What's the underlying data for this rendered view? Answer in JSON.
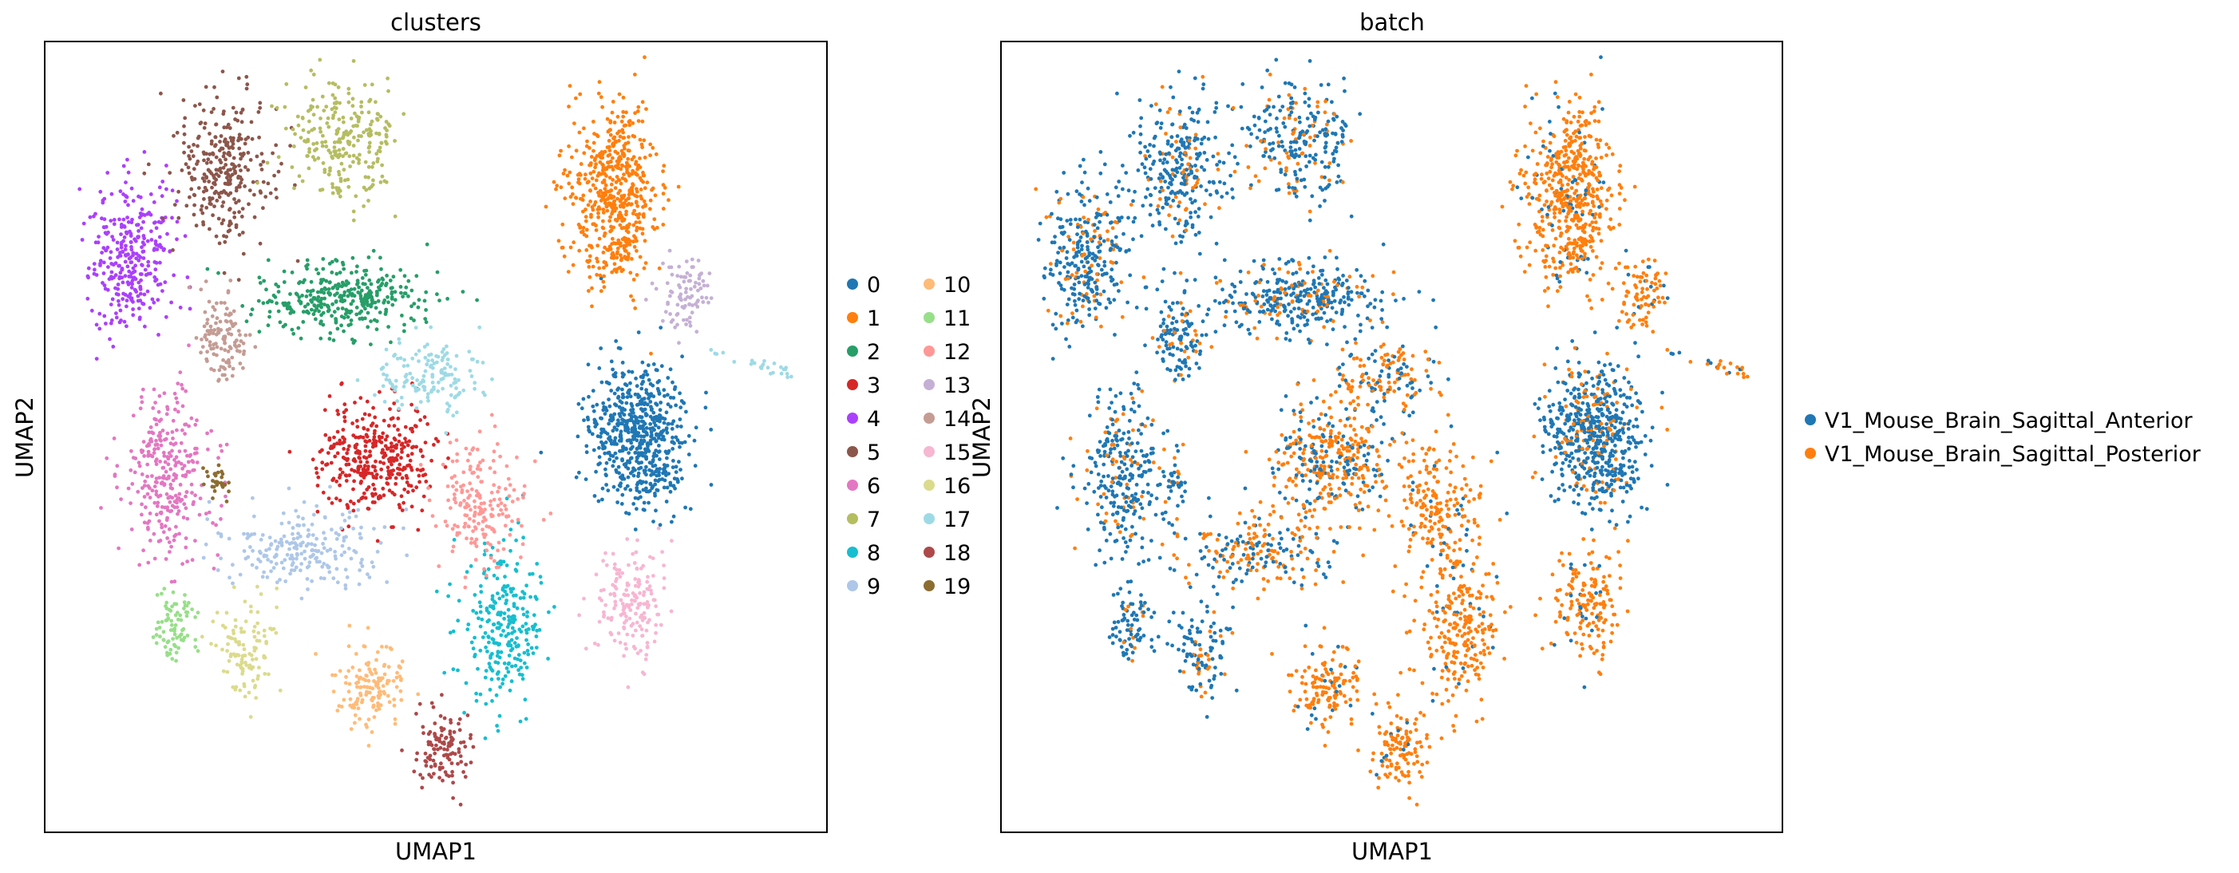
{
  "chart_data": [
    {
      "type": "scatter",
      "title": "clusters",
      "xlabel": "UMAP1",
      "ylabel": "UMAP2",
      "grid": false,
      "legend_placement": "right",
      "legend_columns": 2,
      "categories": [
        "0",
        "1",
        "2",
        "3",
        "4",
        "5",
        "6",
        "7",
        "8",
        "9",
        "10",
        "11",
        "12",
        "13",
        "14",
        "15",
        "16",
        "17",
        "18",
        "19"
      ],
      "colors": [
        "#1f77b4",
        "#ff7f0e",
        "#279e68",
        "#d62728",
        "#aa40fc",
        "#8c564b",
        "#e377c2",
        "#b5bd61",
        "#17becf",
        "#aec7e8",
        "#ffbb78",
        "#98df8a",
        "#ff9896",
        "#c5b0d5",
        "#c49c94",
        "#f7b6d2",
        "#dbdb8d",
        "#9edae5",
        "#ad494a",
        "#8c6d31"
      ],
      "series_shape_note": "cluster regions in UMAP space"
    },
    {
      "type": "scatter",
      "title": "batch",
      "xlabel": "UMAP1",
      "ylabel": "UMAP2",
      "grid": false,
      "legend_placement": "right",
      "categories": [
        "V1_Mouse_Brain_Sagittal_Anterior",
        "V1_Mouse_Brain_Sagittal_Posterior"
      ],
      "colors": [
        "#1f77b4",
        "#ff7f0e"
      ]
    }
  ]
}
